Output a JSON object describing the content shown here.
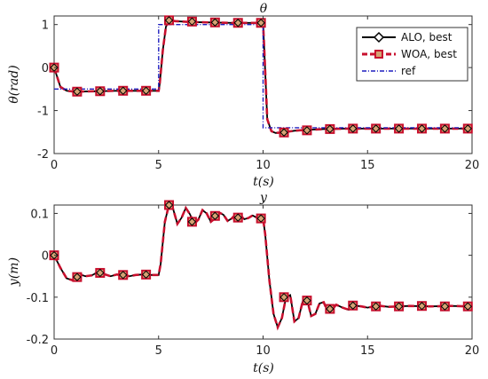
{
  "chart_data": [
    {
      "type": "line",
      "title": "θ",
      "xlabel": "t(s)",
      "ylabel": "θ(rad)",
      "xlim": [
        0,
        20
      ],
      "ylim": [
        -2,
        1.2
      ],
      "xticks": [
        "0",
        "5",
        "10",
        "15",
        "20"
      ],
      "yticks": [
        "1",
        "0",
        "-1",
        "-2"
      ],
      "grid": false,
      "legend": "top-right",
      "series": [
        {
          "name": "ALO, best",
          "color": "#000000",
          "marker": "diamond",
          "x": [
            0,
            0.3,
            0.6,
            1,
            2,
            3,
            4,
            5,
            5.05,
            5.2,
            5.35,
            5.5,
            5.8,
            6.5,
            7.5,
            8.5,
            9.5,
            10,
            10.05,
            10.2,
            10.4,
            10.6,
            10.9,
            11.5,
            12,
            13,
            14,
            15,
            16,
            17,
            18,
            19,
            19.9
          ],
          "y": [
            0,
            -0.45,
            -0.54,
            -0.56,
            -0.55,
            -0.54,
            -0.54,
            -0.54,
            -0.4,
            0.4,
            0.95,
            1.1,
            1.08,
            1.06,
            1.05,
            1.04,
            1.04,
            1.04,
            0.5,
            -1.2,
            -1.48,
            -1.52,
            -1.51,
            -1.47,
            -1.45,
            -1.43,
            -1.42,
            -1.42,
            -1.42,
            -1.42,
            -1.42,
            -1.42,
            -1.42
          ]
        },
        {
          "name": "WOA, best",
          "color": "#c8102e",
          "marker": "square",
          "x": [
            0,
            0.3,
            0.6,
            1,
            2,
            3,
            4,
            5,
            5.05,
            5.2,
            5.35,
            5.5,
            5.8,
            6.5,
            7.5,
            8.5,
            9.5,
            10,
            10.05,
            10.2,
            10.4,
            10.6,
            10.9,
            11.5,
            12,
            13,
            14,
            15,
            16,
            17,
            18,
            19,
            19.9
          ],
          "y": [
            0,
            -0.45,
            -0.54,
            -0.56,
            -0.55,
            -0.54,
            -0.54,
            -0.54,
            -0.4,
            0.4,
            0.95,
            1.1,
            1.08,
            1.06,
            1.05,
            1.04,
            1.04,
            1.04,
            0.5,
            -1.2,
            -1.48,
            -1.52,
            -1.51,
            -1.47,
            -1.45,
            -1.43,
            -1.42,
            -1.42,
            -1.42,
            -1.42,
            -1.42,
            -1.42,
            -1.42
          ]
        },
        {
          "name": "ref",
          "color": "#1f1fbf",
          "x": [
            0,
            5,
            5,
            10,
            10,
            19.9
          ],
          "y": [
            -0.5,
            -0.5,
            1.0,
            1.0,
            -1.4,
            -1.4
          ]
        }
      ],
      "markers": {
        "x": [
          0,
          1.1,
          2.2,
          3.3,
          4.4,
          5.5,
          6.6,
          7.7,
          8.8,
          9.9,
          11,
          12.1,
          13.2,
          14.3,
          15.4,
          16.5,
          17.6,
          18.7,
          19.8
        ],
        "y": [
          0,
          -0.56,
          -0.55,
          -0.54,
          -0.54,
          1.1,
          1.07,
          1.05,
          1.04,
          1.04,
          -1.51,
          -1.46,
          -1.43,
          -1.42,
          -1.42,
          -1.42,
          -1.42,
          -1.42,
          -1.42
        ]
      }
    },
    {
      "type": "line",
      "title": "y",
      "xlabel": "t(s)",
      "ylabel": "y(m)",
      "xlim": [
        0,
        20
      ],
      "ylim": [
        -0.2,
        0.12
      ],
      "xticks": [
        "0",
        "5",
        "10",
        "15",
        "20"
      ],
      "yticks": [
        "0.1",
        "0",
        "-0.1",
        "-0.2"
      ],
      "grid": false,
      "legend": "none",
      "series": [
        {
          "name": "ALO, best",
          "color": "#000000",
          "marker": "diamond",
          "x": [
            0,
            0.3,
            0.6,
            0.9,
            1.2,
            1.5,
            1.8,
            2.1,
            2.4,
            2.7,
            3.0,
            3.3,
            3.6,
            3.9,
            4.2,
            4.5,
            5.0,
            5.1,
            5.3,
            5.5,
            5.7,
            5.9,
            6.1,
            6.3,
            6.5,
            6.7,
            6.9,
            7.1,
            7.3,
            7.5,
            7.7,
            7.9,
            8.1,
            8.3,
            8.5,
            8.7,
            8.9,
            9.1,
            9.3,
            9.5,
            9.7,
            9.9,
            10.0,
            10.1,
            10.3,
            10.5,
            10.7,
            10.9,
            11.1,
            11.3,
            11.5,
            11.7,
            11.9,
            12.1,
            12.3,
            12.5,
            12.7,
            12.9,
            13.1,
            13.3,
            13.5,
            13.8,
            14.1,
            14.4,
            14.7,
            15.0,
            15.5,
            16,
            17,
            18,
            19,
            19.9
          ],
          "y": [
            0,
            -0.03,
            -0.055,
            -0.06,
            -0.045,
            -0.05,
            -0.048,
            -0.04,
            -0.045,
            -0.05,
            -0.046,
            -0.047,
            -0.05,
            -0.047,
            -0.046,
            -0.047,
            -0.047,
            -0.02,
            0.08,
            0.121,
            0.11,
            0.075,
            0.09,
            0.113,
            0.098,
            0.075,
            0.085,
            0.108,
            0.1,
            0.08,
            0.088,
            0.102,
            0.097,
            0.082,
            0.088,
            0.098,
            0.096,
            0.086,
            0.089,
            0.095,
            0.09,
            0.088,
            0.088,
            0.05,
            -0.06,
            -0.14,
            -0.172,
            -0.15,
            -0.1,
            -0.095,
            -0.158,
            -0.15,
            -0.11,
            -0.105,
            -0.145,
            -0.14,
            -0.115,
            -0.112,
            -0.135,
            -0.13,
            -0.118,
            -0.125,
            -0.13,
            -0.12,
            -0.122,
            -0.125,
            -0.12,
            -0.123,
            -0.121,
            -0.122,
            -0.121,
            -0.122
          ]
        },
        {
          "name": "WOA, best",
          "color": "#c8102e",
          "marker": "square",
          "x": [
            0,
            0.3,
            0.6,
            0.9,
            1.2,
            1.5,
            1.8,
            2.1,
            2.4,
            2.7,
            3.0,
            3.3,
            3.6,
            3.9,
            4.2,
            4.5,
            5.0,
            5.1,
            5.3,
            5.5,
            5.7,
            5.9,
            6.1,
            6.3,
            6.5,
            6.7,
            6.9,
            7.1,
            7.3,
            7.5,
            7.7,
            7.9,
            8.1,
            8.3,
            8.5,
            8.7,
            8.9,
            9.1,
            9.3,
            9.5,
            9.7,
            9.9,
            10.0,
            10.1,
            10.3,
            10.5,
            10.7,
            10.9,
            11.1,
            11.3,
            11.5,
            11.7,
            11.9,
            12.1,
            12.3,
            12.5,
            12.7,
            12.9,
            13.1,
            13.3,
            13.5,
            13.8,
            14.1,
            14.4,
            14.7,
            15.0,
            15.5,
            16,
            17,
            18,
            19,
            19.9
          ],
          "y": [
            0,
            -0.03,
            -0.055,
            -0.06,
            -0.045,
            -0.05,
            -0.048,
            -0.04,
            -0.045,
            -0.05,
            -0.046,
            -0.047,
            -0.05,
            -0.047,
            -0.046,
            -0.047,
            -0.047,
            -0.02,
            0.08,
            0.121,
            0.11,
            0.075,
            0.09,
            0.113,
            0.098,
            0.075,
            0.085,
            0.108,
            0.1,
            0.08,
            0.088,
            0.102,
            0.097,
            0.082,
            0.088,
            0.098,
            0.096,
            0.086,
            0.089,
            0.095,
            0.09,
            0.088,
            0.088,
            0.05,
            -0.06,
            -0.14,
            -0.172,
            -0.15,
            -0.1,
            -0.095,
            -0.158,
            -0.15,
            -0.11,
            -0.105,
            -0.145,
            -0.14,
            -0.115,
            -0.112,
            -0.135,
            -0.13,
            -0.118,
            -0.125,
            -0.13,
            -0.12,
            -0.122,
            -0.125,
            -0.12,
            -0.123,
            -0.121,
            -0.122,
            -0.121,
            -0.122
          ]
        }
      ],
      "markers": {
        "x": [
          0,
          1.1,
          2.2,
          3.3,
          4.4,
          5.5,
          6.6,
          7.7,
          8.8,
          9.9,
          11,
          12.1,
          13.2,
          14.3,
          15.4,
          16.5,
          17.6,
          18.7,
          19.8
        ],
        "y": [
          0,
          -0.052,
          -0.042,
          -0.047,
          -0.046,
          0.12,
          0.08,
          0.094,
          0.09,
          0.088,
          -0.1,
          -0.108,
          -0.128,
          -0.12,
          -0.122,
          -0.122,
          -0.121,
          -0.122,
          -0.122
        ]
      }
    }
  ]
}
